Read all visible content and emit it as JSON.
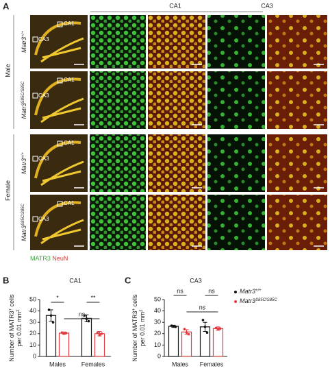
{
  "panel_a": {
    "letter": "A",
    "columns": [
      "CA1",
      "CA3"
    ],
    "sexes": [
      "Male",
      "Female"
    ],
    "genotypes": [
      [
        "Matr3",
        "+/+"
      ],
      [
        "Matr3",
        "S85C/S85C"
      ],
      [
        "Matr3",
        "+/+"
      ],
      [
        "Matr3",
        "S85C/S85C"
      ]
    ],
    "regions": [
      "CA1",
      "CA3"
    ],
    "stains": [
      "MATR3",
      "NeuN"
    ]
  },
  "chart_data": [
    {
      "type": "bar",
      "letter": "B",
      "title": "CA1",
      "ylabel": [
        [
          "Number of MATR3",
          "+",
          " cells"
        ],
        [
          "per 0.01 mm",
          "2"
        ]
      ],
      "categories": [
        "Males",
        "Females"
      ],
      "ylim": [
        0,
        50
      ],
      "yticks": [
        0,
        10,
        20,
        30,
        40,
        50
      ],
      "series": [
        {
          "name": [
            "Matr3",
            "+/+"
          ],
          "color": "#111111",
          "values": [
            36,
            33.5
          ],
          "errors": [
            5,
            3
          ],
          "points": [
            [
              41,
              36,
              30
            ],
            [
              36,
              33,
              31
            ]
          ]
        },
        {
          "name": [
            "Matr3",
            "S85C/S85C"
          ],
          "color": "#e0393e",
          "values": [
            20.5,
            20
          ],
          "errors": [
            1,
            2
          ],
          "points": [
            [
              21,
              20,
              20.5
            ],
            [
              21,
              19,
              20
            ]
          ]
        }
      ],
      "annotations": [
        "*",
        "**",
        "ns"
      ]
    },
    {
      "type": "bar",
      "letter": "C",
      "title": "CA3",
      "ylabel": [
        [
          "Number of MATR3",
          "+",
          " cells"
        ],
        [
          "per 0.01 mm",
          "2"
        ]
      ],
      "categories": [
        "Males",
        "Females"
      ],
      "ylim": [
        0,
        50
      ],
      "yticks": [
        0,
        10,
        20,
        30,
        40,
        50
      ],
      "series": [
        {
          "name": [
            "Matr3",
            "+/+"
          ],
          "color": "#111111",
          "values": [
            26.5,
            26
          ],
          "errors": [
            1,
            4
          ],
          "points": [
            [
              27,
              26.5,
              26
            ],
            [
              32,
              26,
              21
            ]
          ]
        },
        {
          "name": [
            "Matr3",
            "S85C/S85C"
          ],
          "color": "#e0393e",
          "values": [
            21.5,
            24.5
          ],
          "errors": [
            2,
            1.5
          ],
          "points": [
            [
              24,
              21,
              19.5
            ],
            [
              25,
              24,
              24.5
            ]
          ]
        }
      ],
      "annotations": [
        "ns",
        "ns",
        "ns"
      ]
    }
  ]
}
